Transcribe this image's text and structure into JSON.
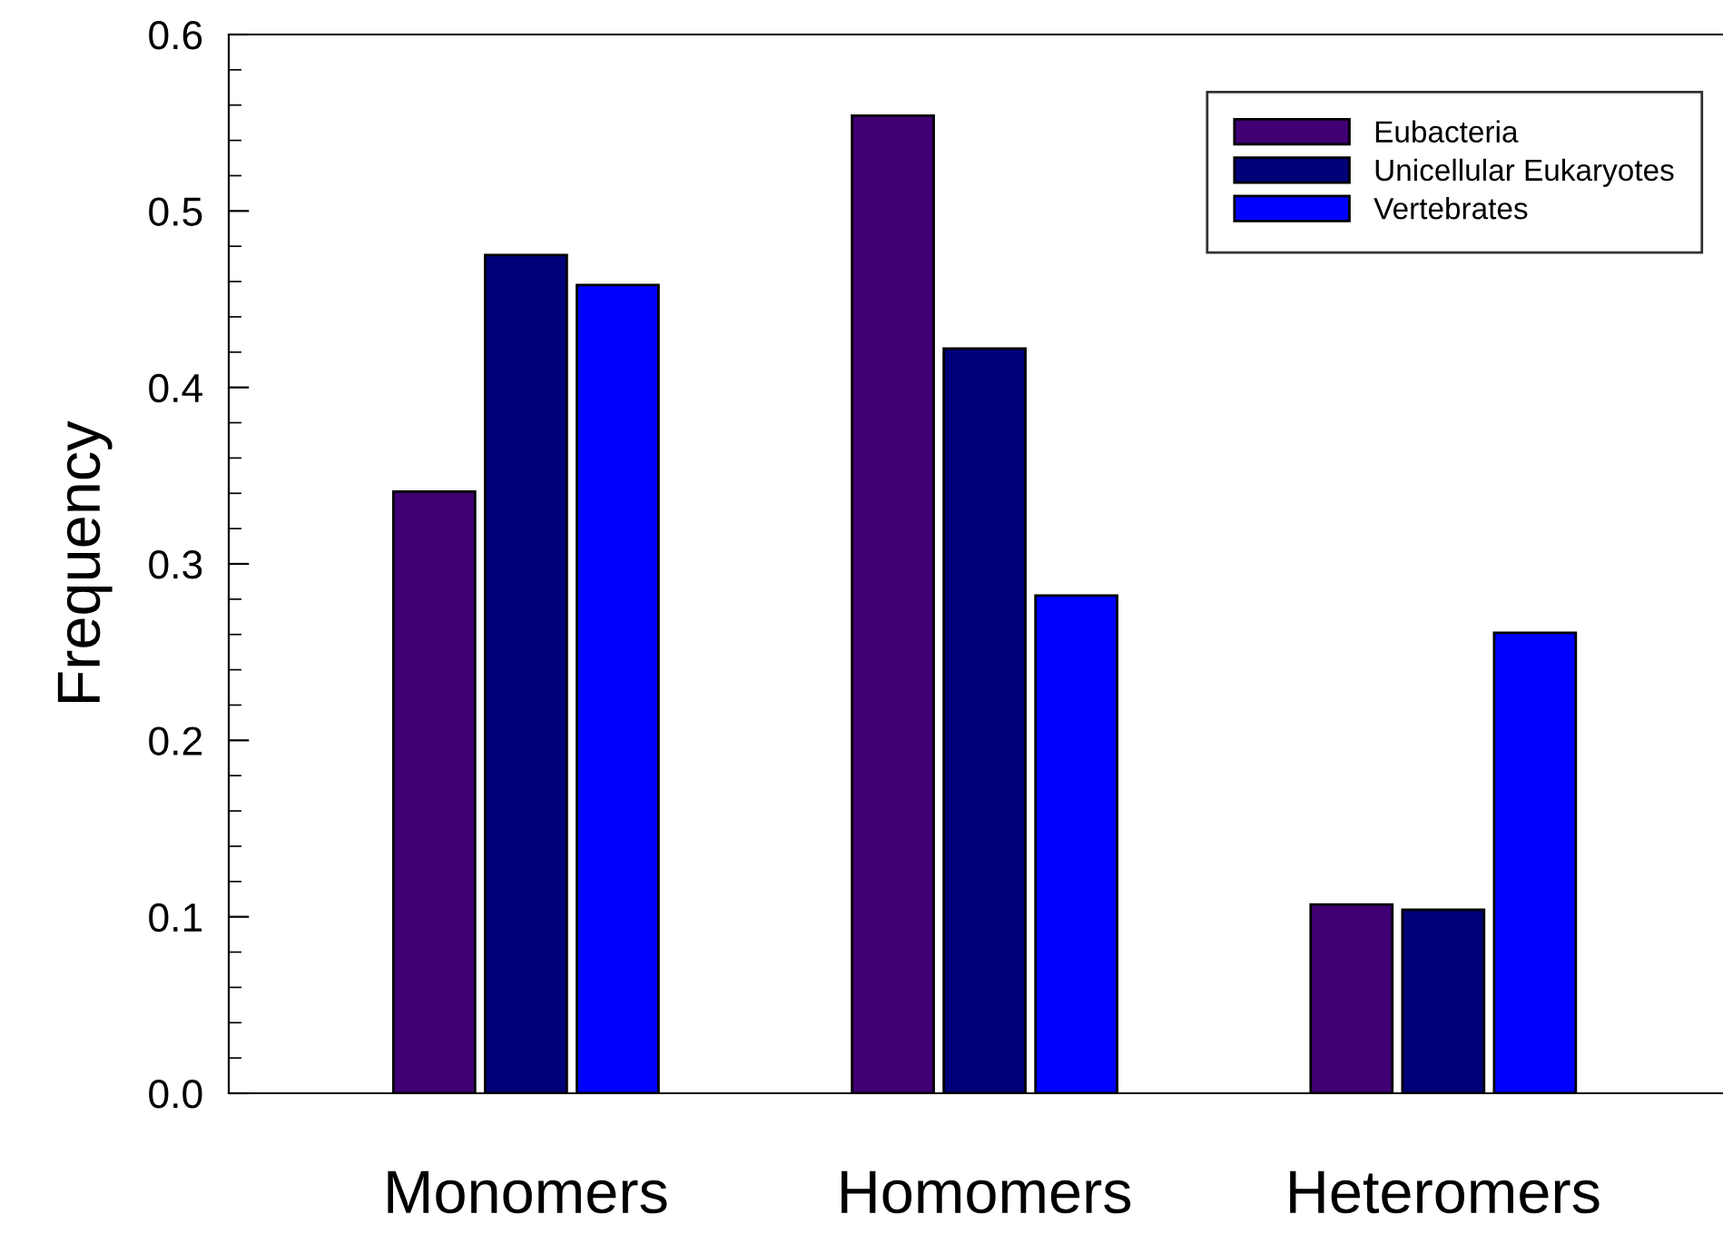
{
  "chart_data": {
    "type": "bar",
    "ylabel": "Frequency",
    "categories": [
      "Monomers",
      "Homomers",
      "Heteromers"
    ],
    "series": [
      {
        "name": "Eubacteria",
        "color": "#400074",
        "values": [
          0.341,
          0.554,
          0.107
        ]
      },
      {
        "name": "Unicellular Eukaryotes",
        "color": "#000078",
        "values": [
          0.475,
          0.422,
          0.104
        ]
      },
      {
        "name": "Vertebrates",
        "color": "#0000ff",
        "values": [
          0.458,
          0.282,
          0.261
        ]
      }
    ],
    "ylim": [
      0,
      0.6
    ],
    "yticks": [
      {
        "value": 0,
        "label": "0.0"
      },
      0.1,
      0.2,
      0.3,
      0.4,
      0.5,
      0.6
    ],
    "grid": false,
    "legend": "top right"
  }
}
